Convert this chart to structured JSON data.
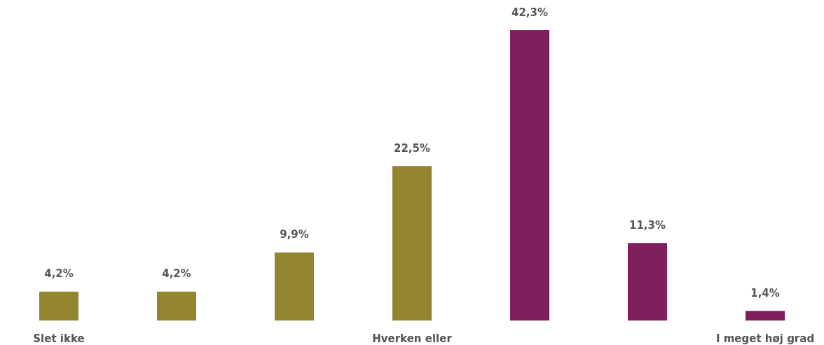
{
  "chart_data": {
    "type": "bar",
    "categories": [
      "Slet ikke",
      null,
      null,
      "Hverken eller",
      null,
      null,
      "I meget høj grad"
    ],
    "values": [
      4.2,
      4.2,
      9.9,
      22.5,
      42.3,
      11.3,
      1.4
    ],
    "value_labels": [
      "4,2%",
      "4,2%",
      "9,9%",
      "22,5%",
      "42,3%",
      "11,3%",
      "1,4%"
    ],
    "colors": [
      "#948631",
      "#948631",
      "#948631",
      "#948631",
      "#7f1f5b",
      "#7f1f5b",
      "#7f1f5b"
    ],
    "grid": false
  }
}
